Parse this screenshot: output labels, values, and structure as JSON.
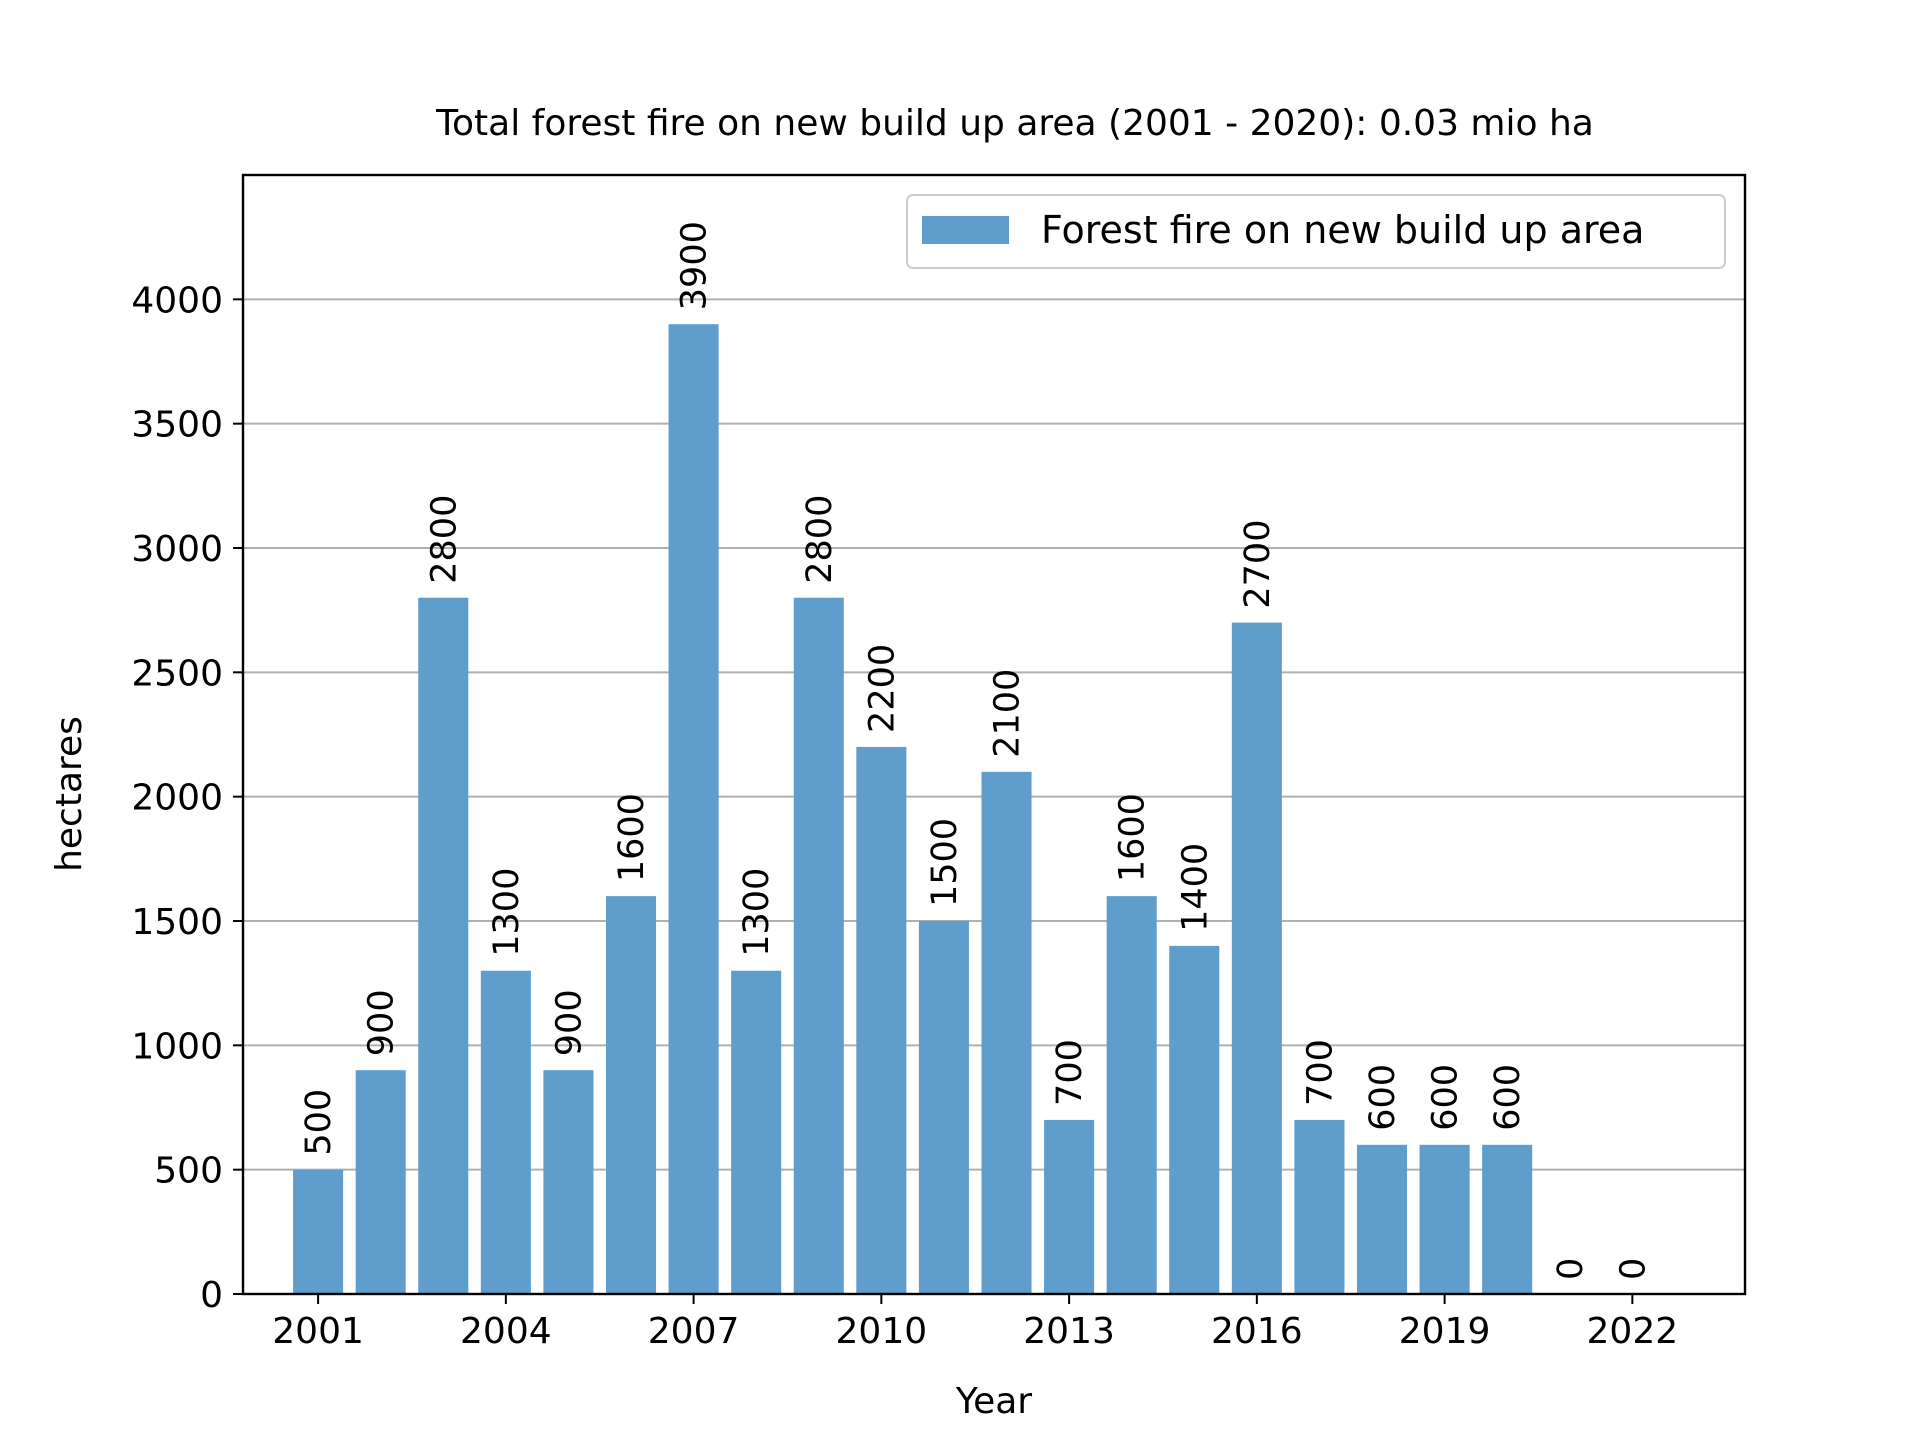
{
  "chart_data": {
    "type": "bar",
    "title": "Total forest fire on new build up area (2001 - 2020): 0.03 mio ha",
    "xlabel": "Year",
    "ylabel": "hectares",
    "x": [
      2001,
      2002,
      2003,
      2004,
      2005,
      2006,
      2007,
      2008,
      2009,
      2010,
      2011,
      2012,
      2013,
      2014,
      2015,
      2016,
      2017,
      2018,
      2019,
      2020,
      2021,
      2022
    ],
    "series": [
      {
        "name": "Forest fire on new build up area",
        "color": "#5f9ecc",
        "values": [
          500,
          900,
          2800,
          1300,
          900,
          1600,
          3900,
          1300,
          2800,
          2200,
          1500,
          2100,
          700,
          1600,
          1400,
          2700,
          700,
          600,
          600,
          600,
          0,
          0
        ]
      }
    ],
    "xticks": [
      2001,
      2004,
      2007,
      2010,
      2013,
      2016,
      2019,
      2022
    ],
    "yticks": [
      0,
      500,
      1000,
      1500,
      2000,
      2500,
      3000,
      3500,
      4000
    ],
    "xlim": [
      1999.8,
      2023.8
    ],
    "ylim": [
      0,
      4500
    ],
    "grid": "y",
    "legend_position": "top-right"
  }
}
